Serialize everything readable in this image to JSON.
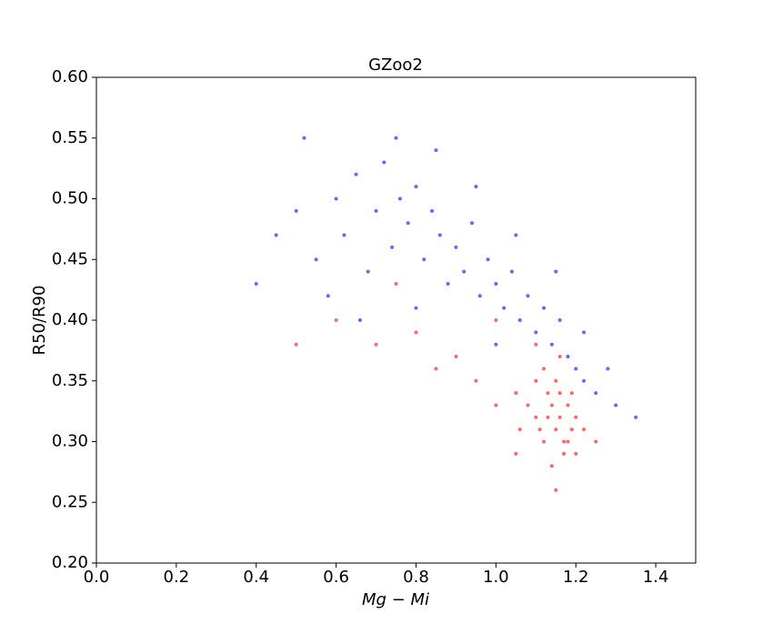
{
  "chart_data": {
    "type": "scatter",
    "title": "GZoo2",
    "xlabel": "Mg − Mi",
    "ylabel": "R50/R90",
    "xlim": [
      0,
      1.5
    ],
    "ylim": [
      0.2,
      0.6
    ],
    "xticks": [
      {
        "value": 0,
        "label": "0.0"
      },
      0.2,
      0.4,
      0.6,
      0.8,
      {
        "value": 1,
        "label": "1.0"
      },
      1.2,
      1.4
    ],
    "yticks": [
      {
        "value": 0.2,
        "label": "0.20"
      },
      0.25,
      {
        "value": 0.3,
        "label": "0.30"
      },
      0.35,
      {
        "value": 0.4,
        "label": "0.40"
      },
      0.45,
      {
        "value": 0.5,
        "label": "0.50"
      },
      0.55,
      {
        "value": 0.6,
        "label": "0.60"
      }
    ],
    "series": [
      {
        "color": "#0000ff",
        "x": [
          0.45,
          0.5,
          0.55,
          0.6,
          0.62,
          0.65,
          0.68,
          0.7,
          0.72,
          0.74,
          0.76,
          0.78,
          0.8,
          0.82,
          0.84,
          0.86,
          0.88,
          0.9,
          0.92,
          0.94,
          0.96,
          0.98,
          1.0,
          1.02,
          1.04,
          1.06,
          1.08,
          1.1,
          1.12,
          1.14,
          1.16,
          1.18,
          1.2,
          1.22,
          1.25,
          1.28,
          1.3,
          1.35,
          0.58,
          0.66,
          0.75,
          0.85,
          0.95,
          1.05,
          0.4,
          0.52,
          1.15,
          1.22,
          0.8,
          1.0
        ],
        "values": [
          0.47,
          0.49,
          0.45,
          0.5,
          0.47,
          0.52,
          0.44,
          0.49,
          0.53,
          0.46,
          0.5,
          0.48,
          0.51,
          0.45,
          0.49,
          0.47,
          0.43,
          0.46,
          0.44,
          0.48,
          0.42,
          0.45,
          0.43,
          0.41,
          0.44,
          0.4,
          0.42,
          0.39,
          0.41,
          0.38,
          0.4,
          0.37,
          0.36,
          0.35,
          0.34,
          0.36,
          0.33,
          0.32,
          0.42,
          0.4,
          0.55,
          0.54,
          0.51,
          0.47,
          0.43,
          0.55,
          0.44,
          0.39,
          0.41,
          0.38
        ]
      },
      {
        "color": "#ff0000",
        "x": [
          1.1,
          1.12,
          1.14,
          1.15,
          1.16,
          1.17,
          1.18,
          1.19,
          1.2,
          1.13,
          1.15,
          1.17,
          1.12,
          1.16,
          1.18,
          1.14,
          1.2,
          1.1,
          1.08,
          1.22,
          1.11,
          1.13,
          1.19,
          1.16,
          1.06,
          1.05,
          1.0,
          0.95,
          0.9,
          0.85,
          0.8,
          0.7,
          0.6,
          0.5,
          1.1,
          1.25,
          1.15,
          1.0,
          0.75,
          1.05
        ],
        "values": [
          0.32,
          0.3,
          0.33,
          0.31,
          0.32,
          0.3,
          0.33,
          0.31,
          0.32,
          0.34,
          0.35,
          0.29,
          0.36,
          0.34,
          0.3,
          0.28,
          0.29,
          0.35,
          0.33,
          0.31,
          0.31,
          0.32,
          0.34,
          0.37,
          0.31,
          0.34,
          0.33,
          0.35,
          0.37,
          0.36,
          0.39,
          0.38,
          0.4,
          0.38,
          0.38,
          0.3,
          0.26,
          0.4,
          0.43,
          0.29
        ]
      }
    ]
  }
}
